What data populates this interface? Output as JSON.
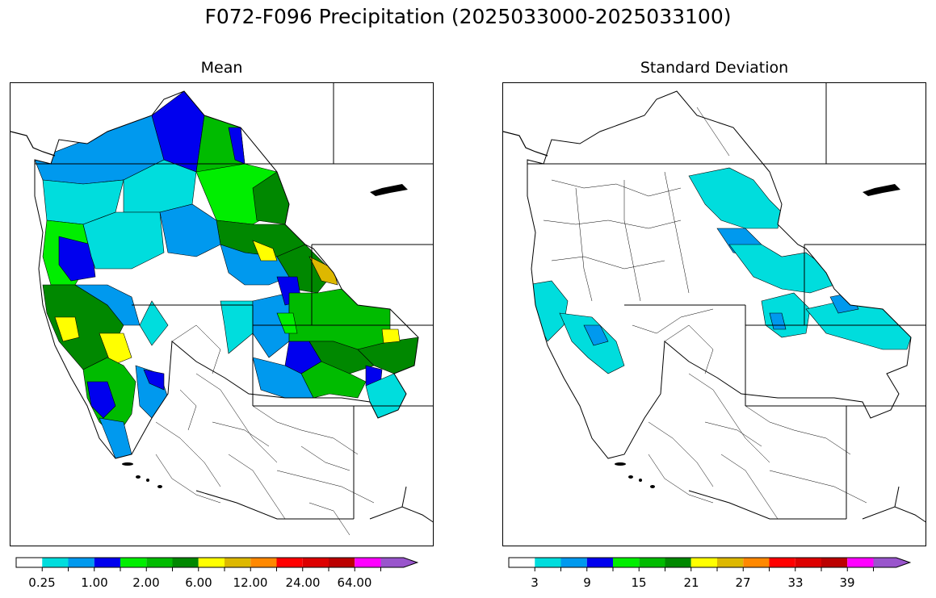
{
  "figure": {
    "title": "F072-F096 Precipitation (2025033000-2025033100)"
  },
  "panels": [
    {
      "title": "Mean",
      "colorbar": {
        "colors": [
          "#ffffff",
          "#00dddd",
          "#0099ee",
          "#0000ee",
          "#00ee00",
          "#00bb00",
          "#008800",
          "#ffff00",
          "#ddb800",
          "#ff8800",
          "#ff0000",
          "#dd0000",
          "#bb0000",
          "#ff00ff",
          "#9955cc"
        ],
        "extend": "max",
        "tick_labels": [
          "0.25",
          "1.00",
          "2.00",
          "6.00",
          "12.00",
          "24.00",
          "64.00"
        ]
      }
    },
    {
      "title": "Standard Deviation",
      "colorbar": {
        "colors": [
          "#ffffff",
          "#00dddd",
          "#0099ee",
          "#0000ee",
          "#00ee00",
          "#00bb00",
          "#008800",
          "#ffff00",
          "#ddb800",
          "#ff8800",
          "#ff0000",
          "#dd0000",
          "#bb0000",
          "#ff00ff",
          "#9955cc"
        ],
        "extend": "max",
        "tick_labels": [
          "3",
          "9",
          "15",
          "21",
          "27",
          "33",
          "39"
        ]
      }
    }
  ]
}
